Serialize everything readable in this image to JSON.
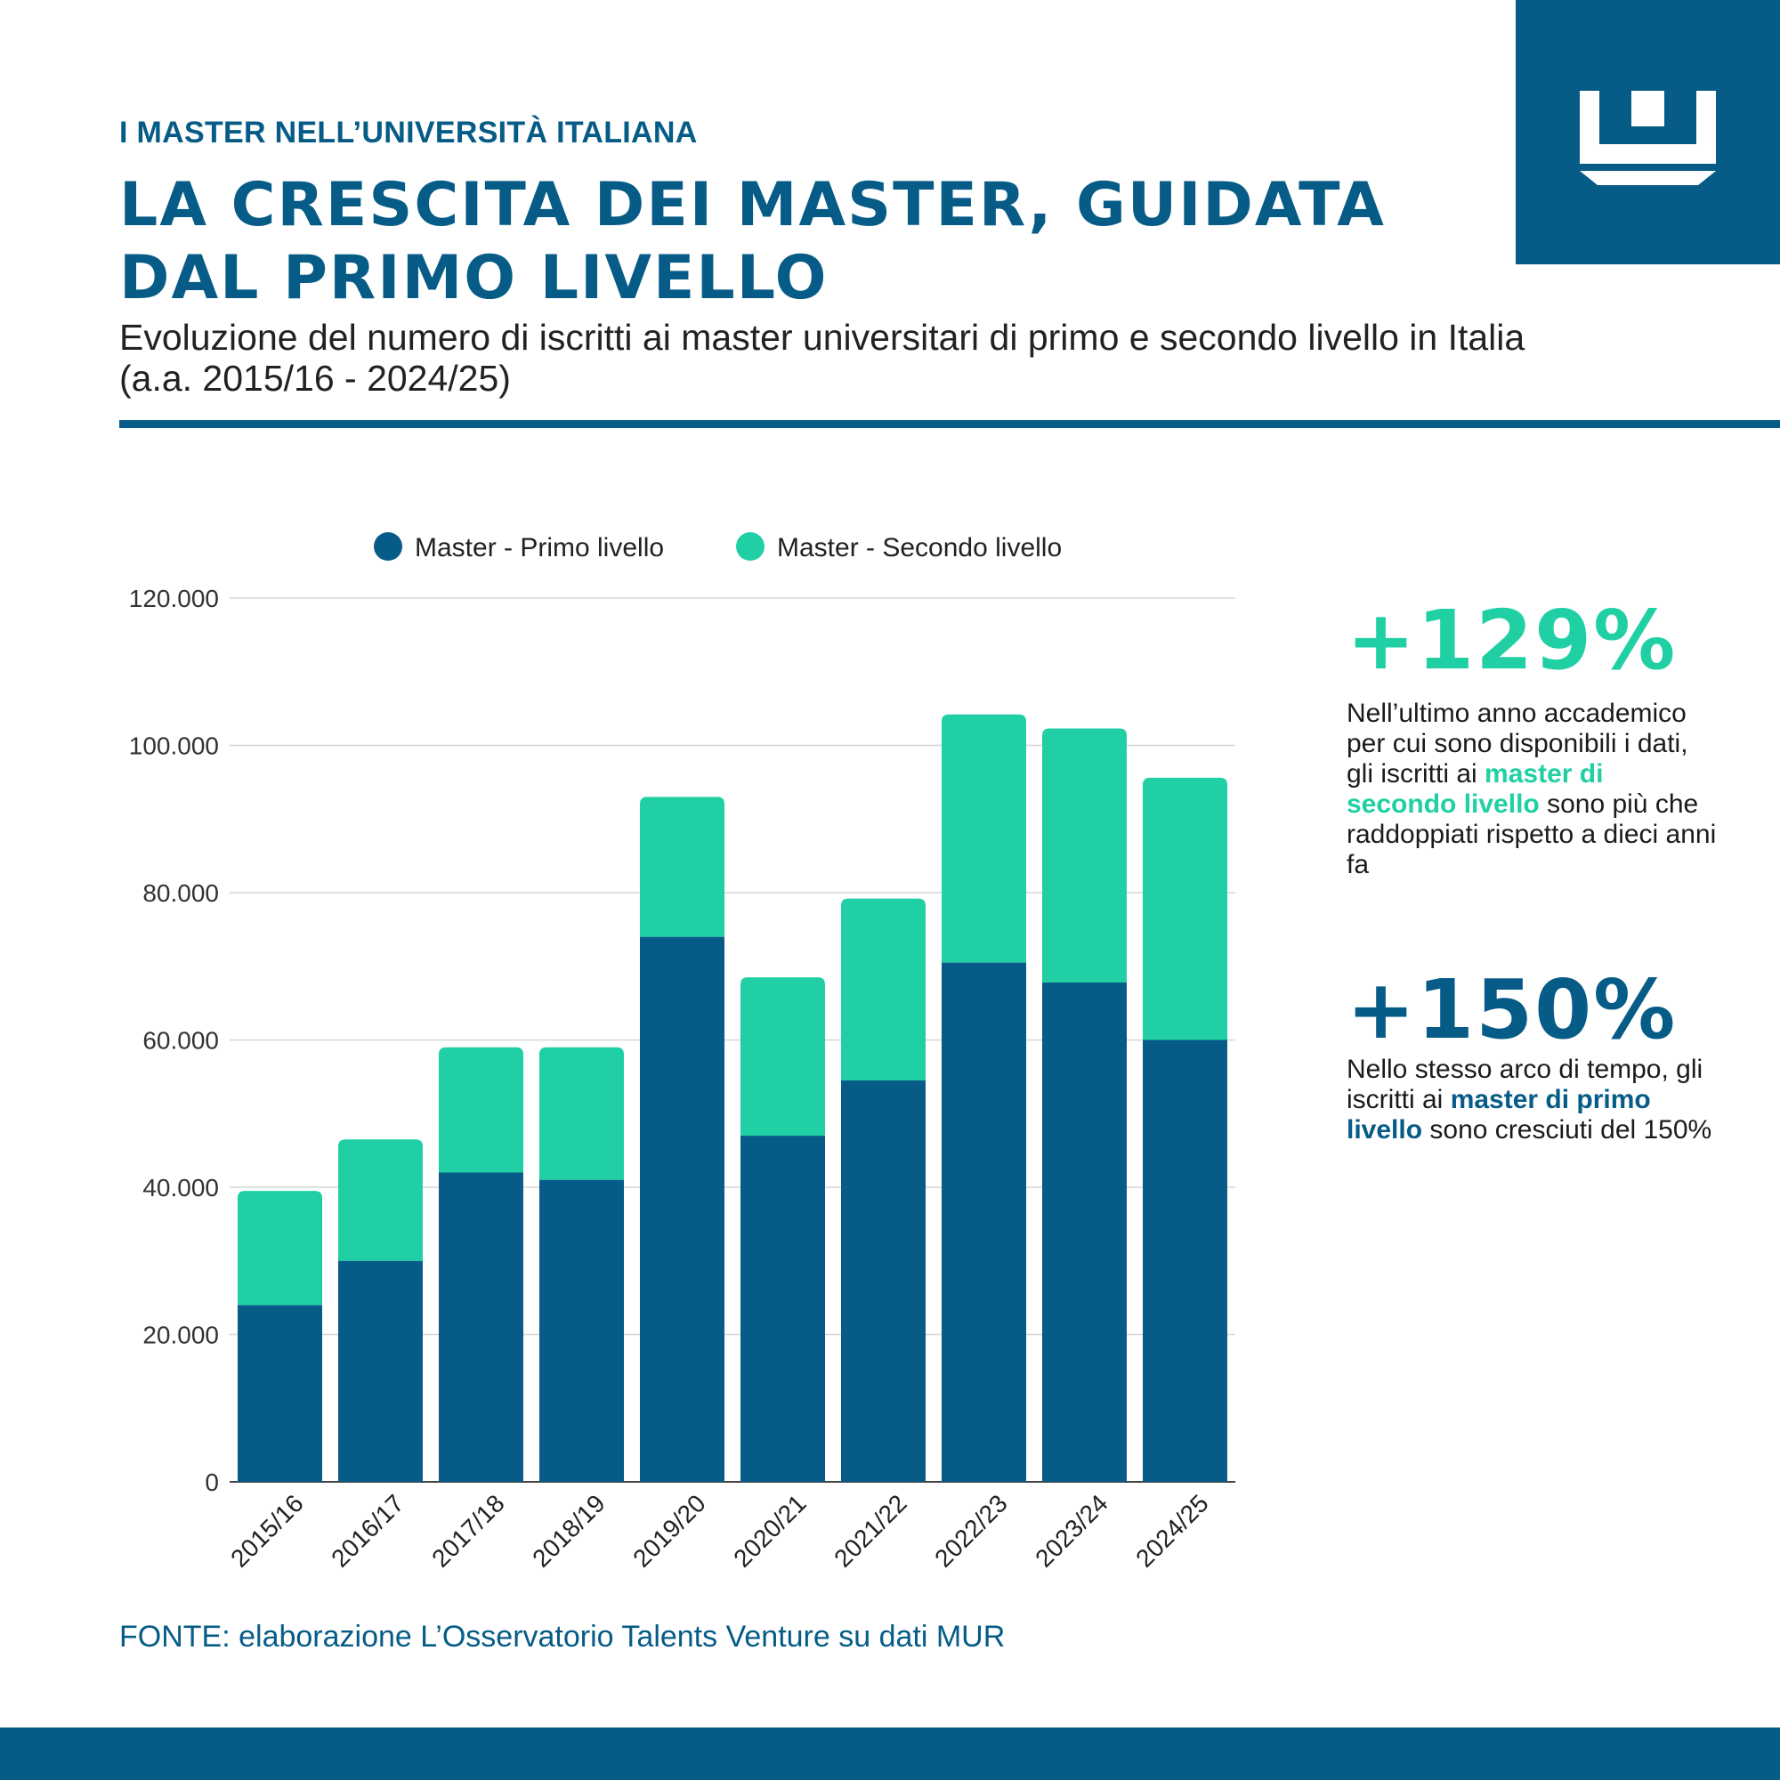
{
  "header": {
    "kicker": "I MASTER NELL’UNIVERSITÀ ITALIANA",
    "title": "LA CRESCITA DEI MASTER, GUIDATA DAL PRIMO LIVELLO",
    "subtitle": "Evoluzione del numero di iscritti ai master universitari di primo e secondo livello in Italia (a.a. 2015/16 - 2024/25)"
  },
  "logo": {
    "icon": "crown-logo-icon",
    "bg_color": "#065c87"
  },
  "colors": {
    "primary": "#065c87",
    "secondary": "#20d0a4"
  },
  "stats": [
    {
      "value": "+129%",
      "text_before": "Nell’ultimo anno accademico per cui sono disponibili i dati, gli iscritti ai ",
      "highlight": "master di secondo livello",
      "text_after": " sono più che raddoppiati rispetto a dieci anni fa"
    },
    {
      "value": "+150%",
      "text_before": "Nello stesso arco di tempo, gli iscritti ai ",
      "highlight": "master di primo livello",
      "text_after": " sono cresciuti del 150%"
    }
  ],
  "source": "FONTE: elaborazione L’Osservatorio Talents Venture su dati MUR",
  "chart_data": {
    "type": "bar",
    "stacked": true,
    "title": "",
    "xlabel": "",
    "ylabel": "",
    "categories": [
      "2015/16",
      "2016/17",
      "2017/18",
      "2018/19",
      "2019/20",
      "2020/21",
      "2021/22",
      "2022/23",
      "2023/24",
      "2024/25"
    ],
    "series": [
      {
        "name": "Master - Primo livello",
        "color": "#065c87",
        "values": [
          24000,
          30000,
          42000,
          41000,
          74000,
          47000,
          54500,
          70500,
          67800,
          60000
        ]
      },
      {
        "name": "Master - Secondo livello",
        "color": "#20d0a4",
        "values": [
          15500,
          16500,
          17000,
          18000,
          19000,
          21500,
          24700,
          33700,
          34500,
          35600
        ]
      }
    ],
    "ylim": [
      0,
      120000
    ],
    "yticks": [
      0,
      20000,
      40000,
      60000,
      80000,
      100000,
      120000
    ],
    "ytick_labels": [
      "0",
      "20.000",
      "40.000",
      "60.000",
      "80.000",
      "100.000",
      "120.000"
    ],
    "grid": true,
    "legend_position": "top"
  }
}
